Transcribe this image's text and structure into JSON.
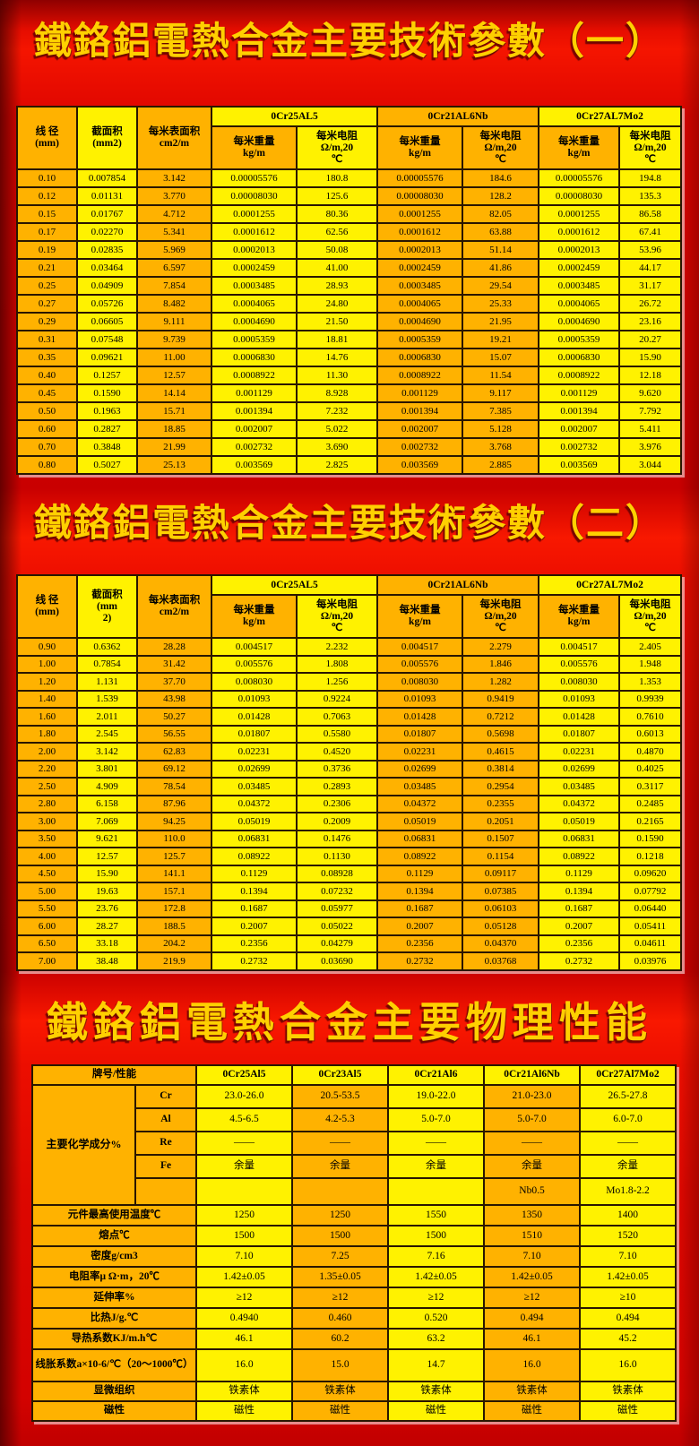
{
  "colors": {
    "cell_orange": "#ffb200",
    "cell_yellow": "#fff200",
    "title_gold": "#ffd000",
    "background_red_bright": "#f51500",
    "background_red_dark": "#8f0000",
    "table_border": "#2a1600"
  },
  "param_subheaders": {
    "weight": "每米重量\nkg/m",
    "resistance": "每米电阻\nΩ/m,20\n℃"
  },
  "section1": {
    "title": "鐵鉻鋁電熱合金主要技術參數（一）",
    "table": {
      "diameter_header": "线 径\n(mm)",
      "area_header": "截面积\n(mm2)",
      "surface_header": "每米表面积\ncm2/m",
      "alloys": [
        "0Cr25AL5",
        "0Cr21AL6Nb",
        "0Cr27AL7Mo2"
      ],
      "rows": [
        [
          "0.10",
          "0.007854",
          "3.142",
          "0.00005576",
          "180.8",
          "0.00005576",
          "184.6",
          "0.00005576",
          "194.8"
        ],
        [
          "0.12",
          "0.01131",
          "3.770",
          "0.00008030",
          "125.6",
          "0.00008030",
          "128.2",
          "0.00008030",
          "135.3"
        ],
        [
          "0.15",
          "0.01767",
          "4.712",
          "0.0001255",
          "80.36",
          "0.0001255",
          "82.05",
          "0.0001255",
          "86.58"
        ],
        [
          "0.17",
          "0.02270",
          "5.341",
          "0.0001612",
          "62.56",
          "0.0001612",
          "63.88",
          "0.0001612",
          "67.41"
        ],
        [
          "0.19",
          "0.02835",
          "5.969",
          "0.0002013",
          "50.08",
          "0.0002013",
          "51.14",
          "0.0002013",
          "53.96"
        ],
        [
          "0.21",
          "0.03464",
          "6.597",
          "0.0002459",
          "41.00",
          "0.0002459",
          "41.86",
          "0.0002459",
          "44.17"
        ],
        [
          "0.25",
          "0.04909",
          "7.854",
          "0.0003485",
          "28.93",
          "0.0003485",
          "29.54",
          "0.0003485",
          "31.17"
        ],
        [
          "0.27",
          "0.05726",
          "8.482",
          "0.0004065",
          "24.80",
          "0.0004065",
          "25.33",
          "0.0004065",
          "26.72"
        ],
        [
          "0.29",
          "0.06605",
          "9.111",
          "0.0004690",
          "21.50",
          "0.0004690",
          "21.95",
          "0.0004690",
          "23.16"
        ],
        [
          "0.31",
          "0.07548",
          "9.739",
          "0.0005359",
          "18.81",
          "0.0005359",
          "19.21",
          "0.0005359",
          "20.27"
        ],
        [
          "0.35",
          "0.09621",
          "11.00",
          "0.0006830",
          "14.76",
          "0.0006830",
          "15.07",
          "0.0006830",
          "15.90"
        ],
        [
          "0.40",
          "0.1257",
          "12.57",
          "0.0008922",
          "11.30",
          "0.0008922",
          "11.54",
          "0.0008922",
          "12.18"
        ],
        [
          "0.45",
          "0.1590",
          "14.14",
          "0.001129",
          "8.928",
          "0.001129",
          "9.117",
          "0.001129",
          "9.620"
        ],
        [
          "0.50",
          "0.1963",
          "15.71",
          "0.001394",
          "7.232",
          "0.001394",
          "7.385",
          "0.001394",
          "7.792"
        ],
        [
          "0.60",
          "0.2827",
          "18.85",
          "0.002007",
          "5.022",
          "0.002007",
          "5.128",
          "0.002007",
          "5.411"
        ],
        [
          "0.70",
          "0.3848",
          "21.99",
          "0.002732",
          "3.690",
          "0.002732",
          "3.768",
          "0.002732",
          "3.976"
        ],
        [
          "0.80",
          "0.5027",
          "25.13",
          "0.003569",
          "2.825",
          "0.003569",
          "2.885",
          "0.003569",
          "3.044"
        ]
      ]
    }
  },
  "section2": {
    "title": "鐵鉻鋁電熱合金主要技術參數（二）",
    "table": {
      "diameter_header": "线 径\n(mm)",
      "area_header": "截面积\n(mm\n2)",
      "surface_header": "每米表面积\ncm2/m",
      "alloys": [
        "0Cr25AL5",
        "0Cr21AL6Nb",
        "0Cr27AL7Mo2"
      ],
      "rows": [
        [
          "0.90",
          "0.6362",
          "28.28",
          "0.004517",
          "2.232",
          "0.004517",
          "2.279",
          "0.004517",
          "2.405"
        ],
        [
          "1.00",
          "0.7854",
          "31.42",
          "0.005576",
          "1.808",
          "0.005576",
          "1.846",
          "0.005576",
          "1.948"
        ],
        [
          "1.20",
          "1.131",
          "37.70",
          "0.008030",
          "1.256",
          "0.008030",
          "1.282",
          "0.008030",
          "1.353"
        ],
        [
          "1.40",
          "1.539",
          "43.98",
          "0.01093",
          "0.9224",
          "0.01093",
          "0.9419",
          "0.01093",
          "0.9939"
        ],
        [
          "1.60",
          "2.011",
          "50.27",
          "0.01428",
          "0.7063",
          "0.01428",
          "0.7212",
          "0.01428",
          "0.7610"
        ],
        [
          "1.80",
          "2.545",
          "56.55",
          "0.01807",
          "0.5580",
          "0.01807",
          "0.5698",
          "0.01807",
          "0.6013"
        ],
        [
          "2.00",
          "3.142",
          "62.83",
          "0.02231",
          "0.4520",
          "0.02231",
          "0.4615",
          "0.02231",
          "0.4870"
        ],
        [
          "2.20",
          "3.801",
          "69.12",
          "0.02699",
          "0.3736",
          "0.02699",
          "0.3814",
          "0.02699",
          "0.4025"
        ],
        [
          "2.50",
          "4.909",
          "78.54",
          "0.03485",
          "0.2893",
          "0.03485",
          "0.2954",
          "0.03485",
          "0.3117"
        ],
        [
          "2.80",
          "6.158",
          "87.96",
          "0.04372",
          "0.2306",
          "0.04372",
          "0.2355",
          "0.04372",
          "0.2485"
        ],
        [
          "3.00",
          "7.069",
          "94.25",
          "0.05019",
          "0.2009",
          "0.05019",
          "0.2051",
          "0.05019",
          "0.2165"
        ],
        [
          "3.50",
          "9.621",
          "110.0",
          "0.06831",
          "0.1476",
          "0.06831",
          "0.1507",
          "0.06831",
          "0.1590"
        ],
        [
          "4.00",
          "12.57",
          "125.7",
          "0.08922",
          "0.1130",
          "0.08922",
          "0.1154",
          "0.08922",
          "0.1218"
        ],
        [
          "4.50",
          "15.90",
          "141.1",
          "0.1129",
          "0.08928",
          "0.1129",
          "0.09117",
          "0.1129",
          "0.09620"
        ],
        [
          "5.00",
          "19.63",
          "157.1",
          "0.1394",
          "0.07232",
          "0.1394",
          "0.07385",
          "0.1394",
          "0.07792"
        ],
        [
          "5.50",
          "23.76",
          "172.8",
          "0.1687",
          "0.05977",
          "0.1687",
          "0.06103",
          "0.1687",
          "0.06440"
        ],
        [
          "6.00",
          "28.27",
          "188.5",
          "0.2007",
          "0.05022",
          "0.2007",
          "0.05128",
          "0.2007",
          "0.05411"
        ],
        [
          "6.50",
          "33.18",
          "204.2",
          "0.2356",
          "0.04279",
          "0.2356",
          "0.04370",
          "0.2356",
          "0.04611"
        ],
        [
          "7.00",
          "38.48",
          "219.9",
          "0.2732",
          "0.03690",
          "0.2732",
          "0.03768",
          "0.2732",
          "0.03976"
        ]
      ]
    }
  },
  "section3": {
    "title": "鐵鉻鋁電熱合金主要物理性能",
    "table": {
      "header_label": "牌号/性能",
      "alloys": [
        "0Cr25Al5",
        "0Cr23Al5",
        "0Cr21Al6",
        "0Cr21Al6Nb",
        "0Cr27Al7Mo2"
      ],
      "chem_label": "主要化学成分%",
      "chem_rows": [
        {
          "element": "Cr",
          "values": [
            "23.0-26.0",
            "20.5-53.5",
            "19.0-22.0",
            "21.0-23.0",
            "26.5-27.8"
          ]
        },
        {
          "element": "Al",
          "values": [
            "4.5-6.5",
            "4.2-5.3",
            "5.0-7.0",
            "5.0-7.0",
            "6.0-7.0"
          ]
        },
        {
          "element": "Re",
          "values": [
            "——",
            "——",
            "——",
            "——",
            "——"
          ]
        },
        {
          "element": "Fe",
          "values": [
            "余量",
            "余量",
            "余量",
            "余量",
            "余量"
          ]
        },
        {
          "element": "",
          "values": [
            "",
            "",
            "",
            "Nb0.5",
            "Mo1.8-2.2"
          ]
        }
      ],
      "property_rows": [
        {
          "label": "元件最高使用温度℃",
          "values": [
            "1250",
            "1250",
            "1550",
            "1350",
            "1400"
          ]
        },
        {
          "label": "熔点℃",
          "values": [
            "1500",
            "1500",
            "1500",
            "1510",
            "1520"
          ]
        },
        {
          "label": "密度g/cm3",
          "values": [
            "7.10",
            "7.25",
            "7.16",
            "7.10",
            "7.10"
          ]
        },
        {
          "label": "电阻率μ Ω·m，20℃",
          "values": [
            "1.42±0.05",
            "1.35±0.05",
            "1.42±0.05",
            "1.42±0.05",
            "1.42±0.05"
          ]
        },
        {
          "label": "延伸率%",
          "values": [
            "≥12",
            "≥12",
            "≥12",
            "≥12",
            "≥10"
          ]
        },
        {
          "label": "比热J/g.℃",
          "values": [
            "0.4940",
            "0.460",
            "0.520",
            "0.494",
            "0.494"
          ]
        },
        {
          "label": "导热系数KJ/m.h℃",
          "values": [
            "46.1",
            "60.2",
            "63.2",
            "46.1",
            "45.2"
          ]
        },
        {
          "label": "线胀系数a×10-6/℃（20～1000℃）",
          "values": [
            "16.0",
            "15.0",
            "14.7",
            "16.0",
            "16.0"
          ]
        },
        {
          "label": "显微组织",
          "values": [
            "铁素体",
            "铁素体",
            "铁素体",
            "铁素体",
            "铁素体"
          ]
        },
        {
          "label": "磁性",
          "values": [
            "磁性",
            "磁性",
            "磁性",
            "磁性",
            "磁性"
          ]
        }
      ]
    }
  }
}
